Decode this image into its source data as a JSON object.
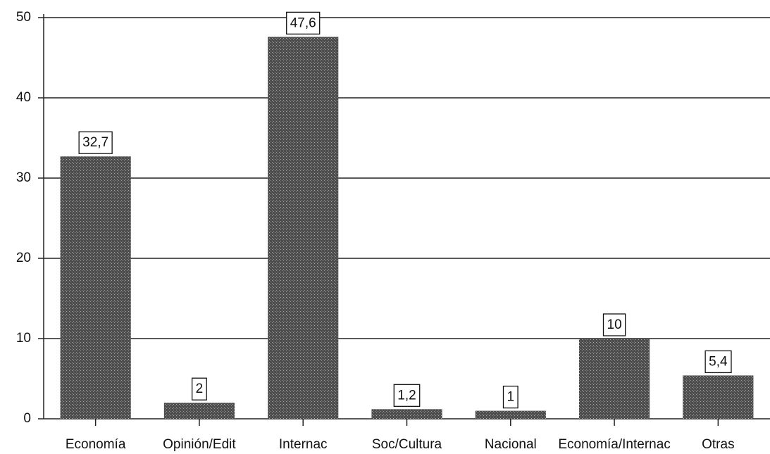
{
  "chart_data": {
    "type": "bar",
    "categories": [
      "Economía",
      "Opinión/Edit",
      "Internac",
      "Soc/Cultura",
      "Nacional",
      "Economía/Internac",
      "Otras"
    ],
    "values": [
      32.7,
      2,
      47.6,
      1.2,
      1,
      10,
      5.4
    ],
    "value_labels": [
      "32,7",
      "2",
      "47,6",
      "1,2",
      "1",
      "10",
      "5,4"
    ],
    "color": "#4d4d4d",
    "ylim": [
      0,
      50
    ],
    "yticks": [
      0,
      10,
      20,
      30,
      40,
      50
    ],
    "grid": true
  }
}
